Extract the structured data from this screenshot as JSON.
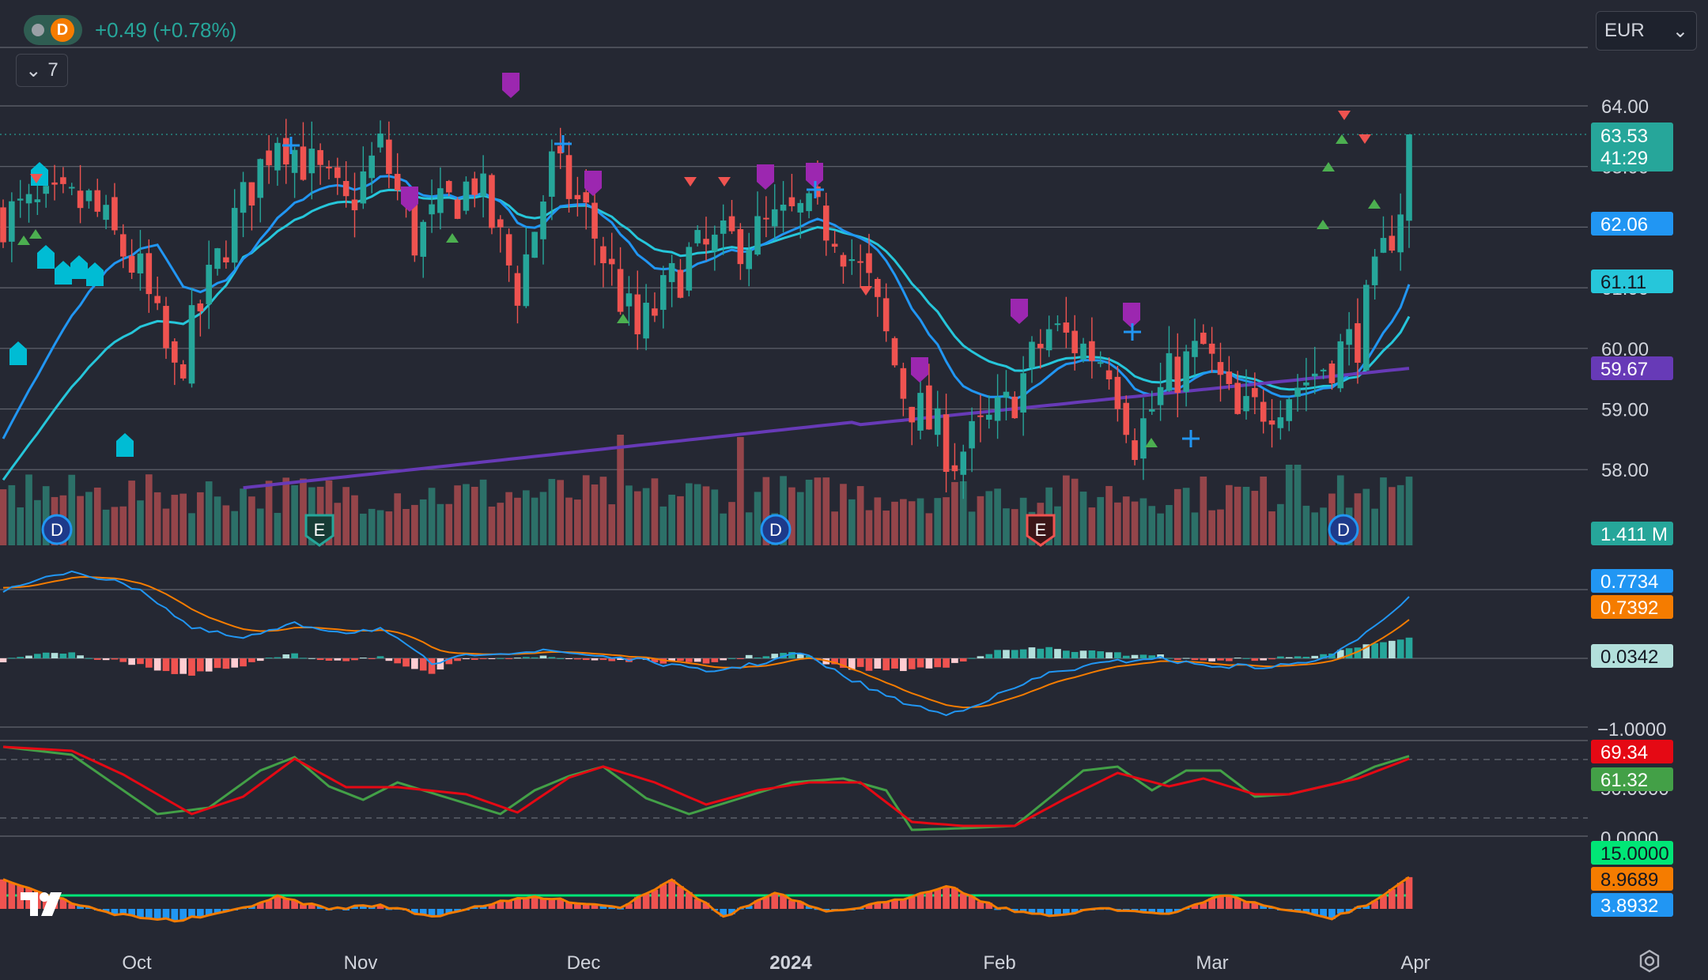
{
  "header": {
    "symbol_interval": "D",
    "change": "+0.49 (+0.78%)",
    "indicators_count": "7"
  },
  "currency": {
    "value": "EUR",
    "arrow": "chevron-down-icon"
  },
  "colors": {
    "background": "#252833",
    "up": "#26a69a",
    "down": "#ef5350",
    "ema_fast": "#2196f3",
    "ema_slow": "#26c6da",
    "ema_long": "#673ab7",
    "macd": "#2196f3",
    "signal": "#f57c00",
    "stoch_k": "#43a047",
    "stoch_d": "#e50914"
  },
  "chart_data": {
    "type": "candlestick",
    "x_labels": [
      "Oct",
      "Nov",
      "Dec",
      "2024",
      "Feb",
      "Mar",
      "Apr"
    ],
    "price_axis": {
      "ticks": [
        "64.00",
        "63.00",
        "62.00",
        "61.00",
        "60.00",
        "59.00",
        "58.00"
      ],
      "labels": {
        "last_price": "63.53",
        "countdown": "41:29",
        "ema_fast": "62.06",
        "ema_slow": "61.11",
        "ema_long": "59.67",
        "volume": "1.411 M"
      }
    },
    "events": [
      {
        "type": "D",
        "label": "D",
        "date": "Sep 27"
      },
      {
        "type": "E",
        "label": "E",
        "date": "Oct 25"
      },
      {
        "type": "D",
        "label": "D",
        "date": "Jan 2"
      },
      {
        "type": "E",
        "label": "E",
        "date": "Feb 8"
      },
      {
        "type": "D",
        "label": "D",
        "date": "Mar 22"
      }
    ],
    "macd_pane": {
      "macd": "0.7734",
      "signal": "0.7392",
      "histogram": "0.0342",
      "axis_tick": "−1.0000"
    },
    "stoch_pane": {
      "k": "69.34",
      "d": "61.32",
      "axis_ticks": [
        "50.0000",
        "0.0000"
      ]
    },
    "adx_pane": {
      "level": "15.0000",
      "line": "8.9689",
      "histogram": "3.8932"
    }
  }
}
